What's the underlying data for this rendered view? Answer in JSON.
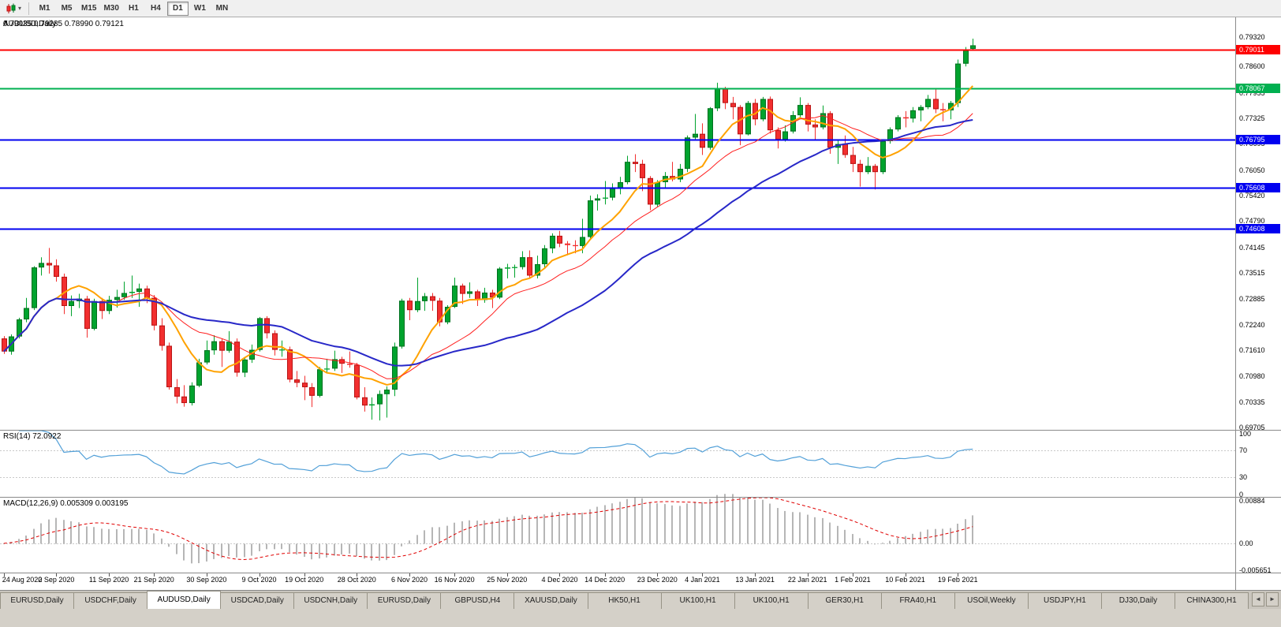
{
  "toolbar": {
    "timeframes": [
      "M1",
      "M5",
      "M15",
      "M30",
      "H1",
      "H4",
      "D1",
      "W1",
      "MN"
    ],
    "active_timeframe": "D1"
  },
  "header": {
    "symbol": "AUDUSD,Daily",
    "ohlc": "0.79035 0.79285 0.78990 0.79121"
  },
  "icons": {
    "collapse": "▼",
    "chart_type_caret": "▾",
    "tab_scroll_left": "◄",
    "tab_scroll_right": "►"
  },
  "colors": {
    "bull": "#00a32e",
    "bear": "#f22f2f",
    "bull_border": "#00701f",
    "bear_border": "#b81414",
    "rsi_line": "#52a0d8",
    "rsi_level": "#c8c8c8",
    "macd_hist": "#b6b6b6",
    "macd_signal": "#e00000",
    "separator": "#8a8a8a",
    "axis_text": "#000000",
    "tick": "#555555"
  },
  "chart_data": {
    "type": "candlestick",
    "symbol": "AUDUSD",
    "timeframe": "Daily",
    "ohlc_display": {
      "open": "0.79035",
      "high": "0.79285",
      "low": "0.78990",
      "close": "0.79121"
    },
    "price_axis_range": {
      "max": 0.7981,
      "min": 0.6965
    },
    "price_ticks": [
      "0.79320",
      "0.78600",
      "0.77955",
      "0.77325",
      "0.76695",
      "0.76050",
      "0.75420",
      "0.74790",
      "0.74145",
      "0.73515",
      "0.72885",
      "0.72240",
      "0.71610",
      "0.70980",
      "0.70335",
      "0.69705"
    ],
    "hlines": [
      {
        "value": 0.79011,
        "label": "0.79011",
        "color": "#fe0000"
      },
      {
        "value": 0.78067,
        "label": "0.78067",
        "color": "#00b050"
      },
      {
        "value": 0.76795,
        "label": "0.76795",
        "color": "#0000f0"
      },
      {
        "value": 0.75608,
        "label": "0.75608",
        "color": "#0000f0"
      },
      {
        "value": 0.74608,
        "label": "0.74608",
        "color": "#0000f0"
      }
    ],
    "moving_averages": [
      {
        "period": 8,
        "color": "#ffa200",
        "width": 2
      },
      {
        "period": 16,
        "color": "#ff2020",
        "width": 1
      },
      {
        "period": 34,
        "color": "#2828c8",
        "width": 2
      }
    ],
    "indicators": {
      "rsi": {
        "label": "RSI(14) 72.0922",
        "period": 14,
        "current": 72.0922,
        "levels": [
          70,
          30
        ],
        "axis_ticks": [
          [
            "100",
            100
          ],
          [
            "70",
            70
          ],
          [
            "30",
            30
          ],
          [
            "0",
            0
          ]
        ]
      },
      "macd": {
        "label": "MACD(12,26,9) 0.005309 0.003195",
        "fast": 12,
        "slow": 26,
        "signal": 9,
        "current_macd": 0.005309,
        "current_signal": 0.003195,
        "range": [
          -0.005651,
          0.00884
        ],
        "axis_ticks": [
          [
            "0.00884",
            0.00884
          ],
          [
            "0.00",
            0
          ],
          [
            "-0.005651",
            -0.005651
          ]
        ]
      }
    },
    "x_labels": [
      {
        "index": 0,
        "label": "24 Aug 2020"
      },
      {
        "index": 7,
        "label": "2 Sep 2020"
      },
      {
        "index": 14,
        "label": "11 Sep 2020"
      },
      {
        "index": 20,
        "label": "21 Sep 2020"
      },
      {
        "index": 27,
        "label": "30 Sep 2020"
      },
      {
        "index": 34,
        "label": "9 Oct 2020"
      },
      {
        "index": 40,
        "label": "19 Oct 2020"
      },
      {
        "index": 47,
        "label": "28 Oct 2020"
      },
      {
        "index": 54,
        "label": "6 Nov 2020"
      },
      {
        "index": 60,
        "label": "16 Nov 2020"
      },
      {
        "index": 67,
        "label": "25 Nov 2020"
      },
      {
        "index": 74,
        "label": "4 Dec 2020"
      },
      {
        "index": 80,
        "label": "14 Dec 2020"
      },
      {
        "index": 87,
        "label": "23 Dec 2020"
      },
      {
        "index": 93,
        "label": "4 Jan 2021"
      },
      {
        "index": 100,
        "label": "13 Jan 2021"
      },
      {
        "index": 107,
        "label": "22 Jan 2021"
      },
      {
        "index": 113,
        "label": "1 Feb 2021"
      },
      {
        "index": 120,
        "label": "10 Feb 2021"
      },
      {
        "index": 127,
        "label": "19 Feb 2021"
      }
    ],
    "candles": [
      [
        0.719,
        0.7196,
        0.7152,
        0.7158
      ],
      [
        0.7158,
        0.72,
        0.715,
        0.7195
      ],
      [
        0.7195,
        0.7241,
        0.719,
        0.7237
      ],
      [
        0.7237,
        0.729,
        0.723,
        0.7265
      ],
      [
        0.7265,
        0.7368,
        0.726,
        0.7365
      ],
      [
        0.7365,
        0.739,
        0.7345,
        0.7376
      ],
      [
        0.7376,
        0.7413,
        0.735,
        0.737
      ],
      [
        0.737,
        0.7385,
        0.733,
        0.7342
      ],
      [
        0.7342,
        0.735,
        0.725,
        0.727
      ],
      [
        0.727,
        0.7296,
        0.7245,
        0.7282
      ],
      [
        0.7282,
        0.73,
        0.7265,
        0.7288
      ],
      [
        0.7288,
        0.7295,
        0.7192,
        0.7214
      ],
      [
        0.7214,
        0.7288,
        0.721,
        0.7282
      ],
      [
        0.7282,
        0.729,
        0.7238,
        0.7258
      ],
      [
        0.7258,
        0.7295,
        0.725,
        0.7285
      ],
      [
        0.7285,
        0.731,
        0.7266,
        0.7292
      ],
      [
        0.7292,
        0.733,
        0.7285,
        0.7302
      ],
      [
        0.7302,
        0.7345,
        0.729,
        0.7305
      ],
      [
        0.7305,
        0.7325,
        0.7268,
        0.7313
      ],
      [
        0.7313,
        0.732,
        0.7277,
        0.729
      ],
      [
        0.729,
        0.7297,
        0.721,
        0.7222
      ],
      [
        0.7222,
        0.724,
        0.716,
        0.7172
      ],
      [
        0.7172,
        0.718,
        0.7064,
        0.707
      ],
      [
        0.707,
        0.709,
        0.703,
        0.7047
      ],
      [
        0.7047,
        0.7075,
        0.7022,
        0.7031
      ],
      [
        0.7031,
        0.7082,
        0.7025,
        0.7074
      ],
      [
        0.7074,
        0.714,
        0.707,
        0.7131
      ],
      [
        0.7131,
        0.7185,
        0.7126,
        0.7161
      ],
      [
        0.7161,
        0.7198,
        0.715,
        0.7183
      ],
      [
        0.7183,
        0.719,
        0.712,
        0.716
      ],
      [
        0.716,
        0.7208,
        0.7155,
        0.7182
      ],
      [
        0.7182,
        0.719,
        0.7096,
        0.7106
      ],
      [
        0.7106,
        0.7145,
        0.7095,
        0.7138
      ],
      [
        0.7138,
        0.7175,
        0.713,
        0.7162
      ],
      [
        0.7162,
        0.7243,
        0.7158,
        0.724
      ],
      [
        0.724,
        0.7245,
        0.719,
        0.7203
      ],
      [
        0.7203,
        0.721,
        0.7148,
        0.7162
      ],
      [
        0.7162,
        0.7185,
        0.7145,
        0.7163
      ],
      [
        0.7163,
        0.717,
        0.7082,
        0.7089
      ],
      [
        0.7089,
        0.711,
        0.707,
        0.7081
      ],
      [
        0.7081,
        0.7098,
        0.7038,
        0.707
      ],
      [
        0.707,
        0.708,
        0.7021,
        0.7049
      ],
      [
        0.7049,
        0.712,
        0.7045,
        0.7114
      ],
      [
        0.7114,
        0.714,
        0.7105,
        0.7116
      ],
      [
        0.7116,
        0.716,
        0.711,
        0.7139
      ],
      [
        0.7139,
        0.7145,
        0.7105,
        0.7128
      ],
      [
        0.7128,
        0.7158,
        0.7118,
        0.7125
      ],
      [
        0.7125,
        0.713,
        0.704,
        0.7045
      ],
      [
        0.7045,
        0.707,
        0.701,
        0.7025
      ],
      [
        0.7025,
        0.7045,
        0.699,
        0.7028
      ],
      [
        0.7028,
        0.7062,
        0.6988,
        0.7053
      ],
      [
        0.7053,
        0.7072,
        0.6995,
        0.7064
      ],
      [
        0.7064,
        0.718,
        0.7048,
        0.717
      ],
      [
        0.717,
        0.7288,
        0.7165,
        0.7283
      ],
      [
        0.7283,
        0.729,
        0.7235,
        0.726
      ],
      [
        0.726,
        0.734,
        0.7255,
        0.7282
      ],
      [
        0.7282,
        0.7302,
        0.7258,
        0.7294
      ],
      [
        0.7294,
        0.7302,
        0.7258,
        0.7283
      ],
      [
        0.7283,
        0.729,
        0.722,
        0.723
      ],
      [
        0.723,
        0.7272,
        0.7225,
        0.7268
      ],
      [
        0.7268,
        0.734,
        0.7265,
        0.732
      ],
      [
        0.732,
        0.7325,
        0.7275,
        0.73
      ],
      [
        0.73,
        0.7328,
        0.729,
        0.7306
      ],
      [
        0.7306,
        0.731,
        0.727,
        0.7285
      ],
      [
        0.7285,
        0.7315,
        0.7278,
        0.7303
      ],
      [
        0.7303,
        0.731,
        0.7265,
        0.7291
      ],
      [
        0.7291,
        0.7366,
        0.7287,
        0.7362
      ],
      [
        0.7362,
        0.7374,
        0.7338,
        0.7365
      ],
      [
        0.7365,
        0.7372,
        0.734,
        0.7366
      ],
      [
        0.7366,
        0.7405,
        0.736,
        0.739
      ],
      [
        0.739,
        0.7407,
        0.7339,
        0.7345
      ],
      [
        0.7345,
        0.7394,
        0.7338,
        0.7373
      ],
      [
        0.7373,
        0.742,
        0.7365,
        0.7412
      ],
      [
        0.7412,
        0.7449,
        0.74,
        0.7443
      ],
      [
        0.7443,
        0.7455,
        0.7415,
        0.7424
      ],
      [
        0.7424,
        0.743,
        0.7395,
        0.742
      ],
      [
        0.742,
        0.7432,
        0.74,
        0.7418
      ],
      [
        0.7418,
        0.7485,
        0.74,
        0.744
      ],
      [
        0.744,
        0.7542,
        0.7435,
        0.753
      ],
      [
        0.753,
        0.7545,
        0.7505,
        0.7535
      ],
      [
        0.7535,
        0.7578,
        0.752,
        0.7537
      ],
      [
        0.7537,
        0.7572,
        0.753,
        0.756
      ],
      [
        0.756,
        0.7588,
        0.7545,
        0.7575
      ],
      [
        0.7575,
        0.764,
        0.757,
        0.7625
      ],
      [
        0.7625,
        0.7644,
        0.76,
        0.762
      ],
      [
        0.762,
        0.763,
        0.7553,
        0.7585
      ],
      [
        0.7585,
        0.759,
        0.7506,
        0.752
      ],
      [
        0.752,
        0.758,
        0.7515,
        0.7575
      ],
      [
        0.7575,
        0.76,
        0.756,
        0.759
      ],
      [
        0.759,
        0.7625,
        0.7577,
        0.7582
      ],
      [
        0.7582,
        0.762,
        0.7575,
        0.7608
      ],
      [
        0.7608,
        0.769,
        0.76,
        0.7685
      ],
      [
        0.7685,
        0.7743,
        0.768,
        0.7694
      ],
      [
        0.7694,
        0.772,
        0.7642,
        0.766
      ],
      [
        0.766,
        0.776,
        0.7655,
        0.7757
      ],
      [
        0.7757,
        0.782,
        0.775,
        0.7805
      ],
      [
        0.7805,
        0.781,
        0.7755,
        0.777
      ],
      [
        0.777,
        0.7785,
        0.773,
        0.776
      ],
      [
        0.776,
        0.7765,
        0.7666,
        0.7693
      ],
      [
        0.7693,
        0.7775,
        0.769,
        0.777
      ],
      [
        0.777,
        0.778,
        0.7715,
        0.773
      ],
      [
        0.773,
        0.7785,
        0.7725,
        0.778
      ],
      [
        0.778,
        0.7786,
        0.7695,
        0.7703
      ],
      [
        0.7703,
        0.771,
        0.7658,
        0.768
      ],
      [
        0.768,
        0.7715,
        0.7675,
        0.77
      ],
      [
        0.77,
        0.775,
        0.7695,
        0.774
      ],
      [
        0.774,
        0.7784,
        0.7735,
        0.7765
      ],
      [
        0.7765,
        0.777,
        0.77,
        0.7717
      ],
      [
        0.7717,
        0.773,
        0.768,
        0.771
      ],
      [
        0.771,
        0.7764,
        0.7705,
        0.7745
      ],
      [
        0.7745,
        0.775,
        0.7645,
        0.766
      ],
      [
        0.766,
        0.768,
        0.762,
        0.7669
      ],
      [
        0.7669,
        0.769,
        0.7635,
        0.7642
      ],
      [
        0.7642,
        0.7662,
        0.76,
        0.762
      ],
      [
        0.762,
        0.763,
        0.7564,
        0.76
      ],
      [
        0.76,
        0.7637,
        0.7595,
        0.7615
      ],
      [
        0.7615,
        0.762,
        0.7557,
        0.76
      ],
      [
        0.76,
        0.768,
        0.7595,
        0.7676
      ],
      [
        0.7676,
        0.771,
        0.767,
        0.7705
      ],
      [
        0.7705,
        0.774,
        0.77,
        0.7735
      ],
      [
        0.7735,
        0.775,
        0.771,
        0.7732
      ],
      [
        0.7732,
        0.776,
        0.7722,
        0.7752
      ],
      [
        0.7752,
        0.7765,
        0.7725,
        0.776
      ],
      [
        0.776,
        0.779,
        0.7755,
        0.778
      ],
      [
        0.778,
        0.7805,
        0.7745,
        0.7755
      ],
      [
        0.7755,
        0.777,
        0.7725,
        0.7752
      ],
      [
        0.7752,
        0.7775,
        0.773,
        0.777
      ],
      [
        0.777,
        0.7877,
        0.776,
        0.7867
      ],
      [
        0.7867,
        0.7908,
        0.786,
        0.79
      ],
      [
        0.79035,
        0.79285,
        0.7899,
        0.79121
      ]
    ]
  },
  "tabs": {
    "active_index": 2,
    "items": [
      "EURUSD,Daily",
      "USDCHF,Daily",
      "AUDUSD,Daily",
      "USDCAD,Daily",
      "USDCNH,Daily",
      "EURUSD,Daily",
      "GBPUSD,H4",
      "XAUUSD,Daily",
      "HK50,H1",
      "UK100,H1",
      "UK100,H1",
      "GER30,H1",
      "FRA40,H1",
      "USOil,Weekly",
      "USDJPY,H1",
      "DJ30,Daily",
      "CHINA300,H1"
    ]
  }
}
